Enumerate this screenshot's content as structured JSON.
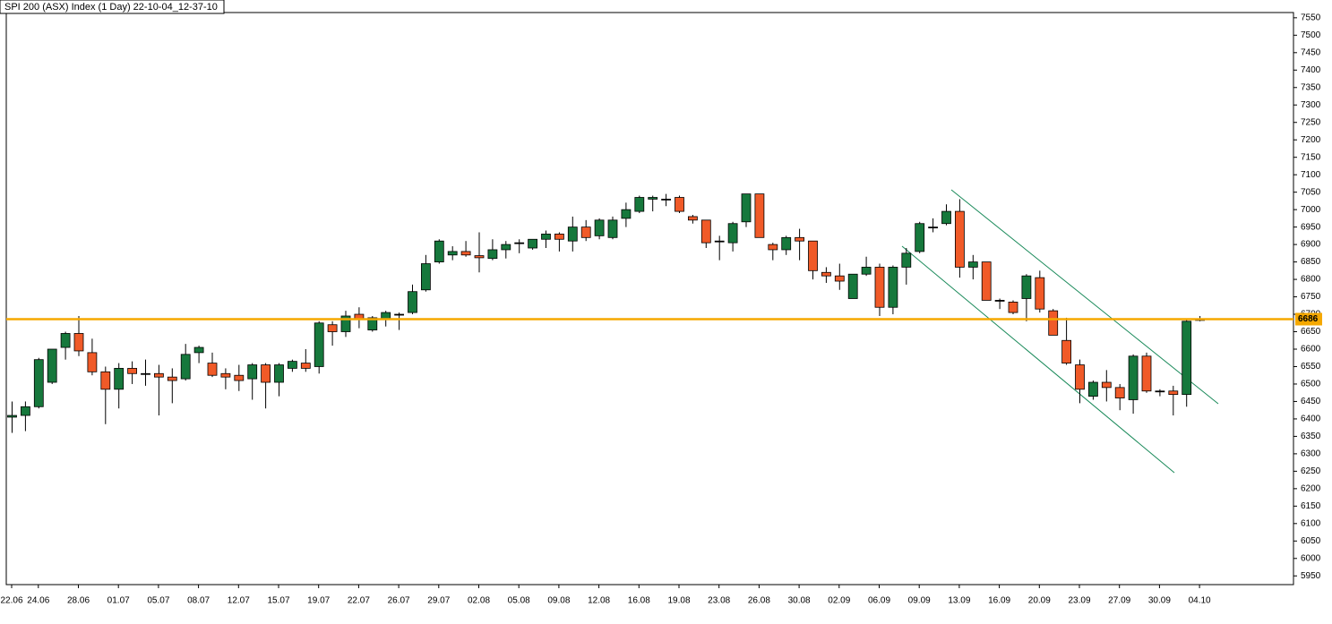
{
  "chart_data": {
    "type": "candlestick",
    "title": "SPI 200 (ASX) Index (1 Day) 22-10-04_12-37-10",
    "categories": [
      "22.06",
      null,
      "24.06",
      null,
      null,
      "28.06",
      null,
      null,
      "01.07",
      null,
      null,
      "05.07",
      null,
      null,
      "08.07",
      null,
      null,
      "12.07",
      null,
      null,
      "15.07",
      null,
      null,
      "19.07",
      null,
      null,
      "22.07",
      null,
      null,
      "26.07",
      null,
      null,
      "29.07",
      null,
      null,
      "02.08",
      null,
      null,
      "05.08",
      null,
      null,
      "09.08",
      null,
      null,
      "12.08",
      null,
      null,
      "16.08",
      null,
      null,
      "19.08",
      null,
      null,
      "23.08",
      null,
      null,
      "26.08",
      null,
      null,
      "30.08",
      null,
      null,
      "02.09",
      null,
      null,
      "06.09",
      null,
      null,
      "09.09",
      null,
      null,
      "13.09",
      null,
      null,
      "16.09",
      null,
      null,
      "20.09",
      null,
      null,
      "23.09",
      null,
      null,
      "27.09",
      null,
      null,
      "30.09",
      null,
      null,
      "04.10"
    ],
    "open": [
      6405,
      6410,
      6435,
      6505,
      6605,
      6645,
      6590,
      6535,
      6485,
      6545,
      6530,
      6530,
      6520,
      6515,
      6590,
      6560,
      6530,
      6525,
      6515,
      6555,
      6505,
      6545,
      6560,
      6550,
      6670,
      6650,
      6700,
      6655,
      6685,
      6700,
      6705,
      6770,
      6850,
      6870,
      6880,
      6868,
      6860,
      6885,
      6905,
      6890,
      6915,
      6930,
      6910,
      6950,
      6925,
      6920,
      6975,
      6995,
      7030,
      7030,
      7035,
      6980,
      6970,
      6910,
      6905,
      6965,
      7045,
      6900,
      6885,
      6920,
      6910,
      6820,
      6810,
      6745,
      6815,
      6835,
      6720,
      6835,
      6880,
      6950,
      6960,
      6995,
      6835,
      6850,
      6740,
      6735,
      6745,
      6805,
      6710,
      6625,
      6555,
      6465,
      6505,
      6490,
      6455,
      6580,
      6480,
      6480,
      6470,
      6685
    ],
    "high": [
      6450,
      6450,
      6575,
      6600,
      6650,
      6695,
      6630,
      6550,
      6560,
      6565,
      6570,
      6555,
      6545,
      6615,
      6610,
      6590,
      6545,
      6555,
      6560,
      6560,
      6560,
      6570,
      6600,
      6680,
      6680,
      6710,
      6720,
      6695,
      6710,
      6705,
      6785,
      6870,
      6915,
      6895,
      6910,
      6935,
      6915,
      6910,
      6915,
      6915,
      6940,
      6935,
      6980,
      6970,
      6975,
      6980,
      7020,
      7040,
      7040,
      7045,
      7040,
      6985,
      6970,
      6925,
      6965,
      7045,
      7045,
      6905,
      6925,
      6945,
      6910,
      6835,
      6845,
      6815,
      6865,
      6845,
      6840,
      6890,
      6965,
      6975,
      7015,
      7030,
      6870,
      6850,
      6745,
      6740,
      6815,
      6825,
      6715,
      6690,
      6570,
      6510,
      6540,
      6500,
      6585,
      6590,
      6485,
      6495,
      6685,
      6695
    ],
    "low": [
      6360,
      6365,
      6430,
      6500,
      6570,
      6580,
      6525,
      6385,
      6430,
      6500,
      6495,
      6410,
      6445,
      6510,
      6560,
      6520,
      6485,
      6480,
      6455,
      6430,
      6465,
      6535,
      6535,
      6530,
      6610,
      6635,
      6660,
      6650,
      6665,
      6655,
      6700,
      6765,
      6845,
      6855,
      6865,
      6820,
      6855,
      6860,
      6875,
      6885,
      6890,
      6880,
      6880,
      6910,
      6915,
      6915,
      6950,
      6990,
      6995,
      7010,
      6990,
      6960,
      6890,
      6855,
      6880,
      6950,
      6920,
      6855,
      6870,
      6855,
      6800,
      6790,
      6770,
      6745,
      6810,
      6695,
      6700,
      6785,
      6875,
      6935,
      6955,
      6805,
      6800,
      6740,
      6715,
      6700,
      6680,
      6705,
      6640,
      6555,
      6445,
      6455,
      6450,
      6425,
      6415,
      6475,
      6465,
      6410,
      6435,
      6680
    ],
    "close": [
      6410,
      6435,
      6570,
      6600,
      6645,
      6595,
      6535,
      6485,
      6545,
      6530,
      6530,
      6520,
      6510,
      6585,
      6605,
      6525,
      6520,
      6510,
      6555,
      6505,
      6555,
      6565,
      6545,
      6675,
      6650,
      6695,
      6685,
      6690,
      6705,
      6700,
      6765,
      6845,
      6910,
      6880,
      6870,
      6862,
      6885,
      6900,
      6905,
      6915,
      6930,
      6915,
      6950,
      6920,
      6970,
      6970,
      7000,
      7035,
      7035,
      7030,
      6995,
      6970,
      6905,
      6910,
      6960,
      7045,
      6920,
      6885,
      6920,
      6910,
      6825,
      6810,
      6795,
      6815,
      6835,
      6720,
      6835,
      6875,
      6960,
      6950,
      6995,
      6835,
      6850,
      6740,
      6740,
      6705,
      6810,
      6715,
      6640,
      6560,
      6485,
      6505,
      6490,
      6460,
      6580,
      6480,
      6480,
      6470,
      6680,
      6685
    ],
    "up_color": "#16783c",
    "down_color": "#f05a28",
    "ylim": [
      5925,
      7565
    ],
    "yticks": [
      5950,
      6000,
      6050,
      6100,
      6150,
      6200,
      6250,
      6300,
      6350,
      6400,
      6450,
      6500,
      6550,
      6600,
      6650,
      6700,
      6750,
      6800,
      6850,
      6900,
      6950,
      7000,
      7050,
      7100,
      7150,
      7200,
      7250,
      7300,
      7350,
      7400,
      7450,
      7500,
      7550
    ],
    "hline": 6686,
    "hline_color": "#f5a800",
    "grid": false
  }
}
